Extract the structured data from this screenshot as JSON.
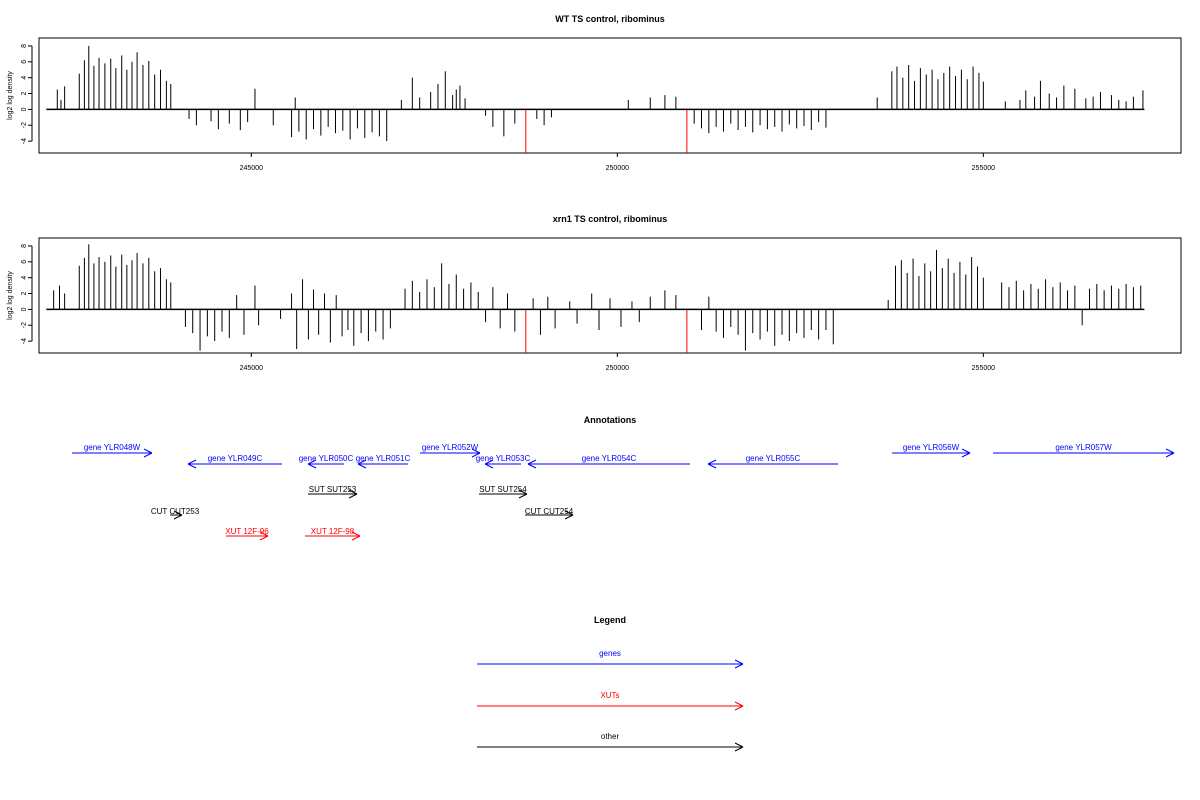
{
  "colors": {
    "black": "#000000",
    "red": "#ff0000",
    "blue": "#0000ff"
  },
  "chart_data": [
    {
      "type": "bar",
      "title": "WT TS control, ribominus",
      "ylabel": "log2 log density",
      "xlim": [
        242100,
        257700
      ],
      "ylim": [
        -5.5,
        9
      ],
      "yticks": [
        "8",
        "6",
        "4",
        "2",
        "0",
        "-2",
        "-4"
      ],
      "xticks": [
        "245000",
        "250000",
        "255000"
      ],
      "baseline_x": [
        242200,
        257200
      ],
      "grid": false,
      "bars": [
        {
          "x": 242350,
          "y": 2.5
        },
        {
          "x": 242400,
          "y": 1.2
        },
        {
          "x": 242450,
          "y": 2.9
        },
        {
          "x": 242650,
          "y": 4.5
        },
        {
          "x": 242720,
          "y": 6.2
        },
        {
          "x": 242780,
          "y": 8.0
        },
        {
          "x": 242850,
          "y": 5.5
        },
        {
          "x": 242920,
          "y": 6.5
        },
        {
          "x": 243000,
          "y": 5.8
        },
        {
          "x": 243080,
          "y": 6.4
        },
        {
          "x": 243150,
          "y": 5.2
        },
        {
          "x": 243230,
          "y": 6.8
        },
        {
          "x": 243300,
          "y": 5.0
        },
        {
          "x": 243370,
          "y": 6.0
        },
        {
          "x": 243440,
          "y": 7.2
        },
        {
          "x": 243520,
          "y": 5.6
        },
        {
          "x": 243600,
          "y": 6.1
        },
        {
          "x": 243680,
          "y": 4.4
        },
        {
          "x": 243760,
          "y": 5.0
        },
        {
          "x": 243840,
          "y": 3.6
        },
        {
          "x": 243900,
          "y": 3.2
        },
        {
          "x": 244150,
          "y": -1.2
        },
        {
          "x": 244250,
          "y": -2.0
        },
        {
          "x": 244450,
          "y": -1.5
        },
        {
          "x": 244550,
          "y": -2.5
        },
        {
          "x": 244700,
          "y": -1.8
        },
        {
          "x": 244850,
          "y": -2.6
        },
        {
          "x": 244950,
          "y": -1.6
        },
        {
          "x": 245050,
          "y": 2.6
        },
        {
          "x": 245300,
          "y": -2.0
        },
        {
          "x": 245550,
          "y": -3.5
        },
        {
          "x": 245600,
          "y": 1.5
        },
        {
          "x": 245650,
          "y": -2.8
        },
        {
          "x": 245750,
          "y": -3.8
        },
        {
          "x": 245850,
          "y": -2.5
        },
        {
          "x": 245950,
          "y": -3.3
        },
        {
          "x": 246050,
          "y": -2.2
        },
        {
          "x": 246150,
          "y": -3.0
        },
        {
          "x": 246250,
          "y": -2.7
        },
        {
          "x": 246350,
          "y": -3.8
        },
        {
          "x": 246450,
          "y": -2.4
        },
        {
          "x": 246550,
          "y": -3.6
        },
        {
          "x": 246650,
          "y": -2.9
        },
        {
          "x": 246750,
          "y": -3.4
        },
        {
          "x": 246850,
          "y": -4.0
        },
        {
          "x": 247050,
          "y": 1.2
        },
        {
          "x": 247200,
          "y": 4.0
        },
        {
          "x": 247300,
          "y": 1.5
        },
        {
          "x": 247450,
          "y": 2.2
        },
        {
          "x": 247550,
          "y": 3.2
        },
        {
          "x": 247650,
          "y": 4.8
        },
        {
          "x": 247750,
          "y": 1.8
        },
        {
          "x": 247800,
          "y": 2.5
        },
        {
          "x": 247850,
          "y": 3.0
        },
        {
          "x": 247920,
          "y": 1.4
        },
        {
          "x": 248200,
          "y": -0.8
        },
        {
          "x": 248300,
          "y": -2.2
        },
        {
          "x": 248450,
          "y": -3.4
        },
        {
          "x": 248600,
          "y": -1.8
        },
        {
          "x": 248750,
          "y": -5.5,
          "color": "red"
        },
        {
          "x": 248900,
          "y": -1.2
        },
        {
          "x": 249000,
          "y": -2.0
        },
        {
          "x": 249100,
          "y": -1.0
        },
        {
          "x": 250150,
          "y": 1.2
        },
        {
          "x": 250450,
          "y": 1.5
        },
        {
          "x": 250650,
          "y": 1.8
        },
        {
          "x": 250800,
          "y": 1.6
        },
        {
          "x": 250950,
          "y": -5.5,
          "color": "red"
        },
        {
          "x": 251050,
          "y": -1.8
        },
        {
          "x": 251150,
          "y": -2.4
        },
        {
          "x": 251250,
          "y": -3.0
        },
        {
          "x": 251350,
          "y": -2.2
        },
        {
          "x": 251450,
          "y": -2.8
        },
        {
          "x": 251550,
          "y": -1.8
        },
        {
          "x": 251650,
          "y": -2.6
        },
        {
          "x": 251750,
          "y": -2.2
        },
        {
          "x": 251850,
          "y": -2.9
        },
        {
          "x": 251950,
          "y": -2.0
        },
        {
          "x": 252050,
          "y": -2.5
        },
        {
          "x": 252150,
          "y": -2.2
        },
        {
          "x": 252250,
          "y": -2.8
        },
        {
          "x": 252350,
          "y": -1.9
        },
        {
          "x": 252450,
          "y": -2.4
        },
        {
          "x": 252550,
          "y": -2.1
        },
        {
          "x": 252650,
          "y": -2.6
        },
        {
          "x": 252750,
          "y": -1.6
        },
        {
          "x": 252850,
          "y": -2.3
        },
        {
          "x": 253550,
          "y": 1.5
        },
        {
          "x": 253750,
          "y": 4.8
        },
        {
          "x": 253820,
          "y": 5.4
        },
        {
          "x": 253900,
          "y": 4.0
        },
        {
          "x": 253980,
          "y": 5.6
        },
        {
          "x": 254060,
          "y": 3.6
        },
        {
          "x": 254140,
          "y": 5.2
        },
        {
          "x": 254220,
          "y": 4.4
        },
        {
          "x": 254300,
          "y": 5.0
        },
        {
          "x": 254380,
          "y": 3.8
        },
        {
          "x": 254460,
          "y": 4.6
        },
        {
          "x": 254540,
          "y": 5.4
        },
        {
          "x": 254620,
          "y": 4.2
        },
        {
          "x": 254700,
          "y": 5.0
        },
        {
          "x": 254780,
          "y": 3.8
        },
        {
          "x": 254860,
          "y": 5.4
        },
        {
          "x": 254940,
          "y": 4.6
        },
        {
          "x": 255000,
          "y": 3.5
        },
        {
          "x": 255300,
          "y": 1.0
        },
        {
          "x": 255500,
          "y": 1.2
        },
        {
          "x": 255580,
          "y": 2.4
        },
        {
          "x": 255700,
          "y": 1.6
        },
        {
          "x": 255780,
          "y": 3.6
        },
        {
          "x": 255900,
          "y": 2.0
        },
        {
          "x": 256000,
          "y": 1.5
        },
        {
          "x": 256100,
          "y": 3.0
        },
        {
          "x": 256250,
          "y": 2.6
        },
        {
          "x": 256400,
          "y": 1.4
        },
        {
          "x": 256500,
          "y": 1.6
        },
        {
          "x": 256600,
          "y": 2.2
        },
        {
          "x": 256750,
          "y": 1.8
        },
        {
          "x": 256850,
          "y": 1.2
        },
        {
          "x": 256950,
          "y": 1.0
        },
        {
          "x": 257050,
          "y": 1.6
        },
        {
          "x": 257180,
          "y": 2.4
        }
      ]
    },
    {
      "type": "bar",
      "title": "xrn1 TS control, ribominus",
      "ylabel": "log2 log density",
      "xlim": [
        242100,
        257700
      ],
      "ylim": [
        -5.5,
        9
      ],
      "yticks": [
        "8",
        "6",
        "4",
        "2",
        "0",
        "-2",
        "-4"
      ],
      "xticks": [
        "245000",
        "250000",
        "255000"
      ],
      "baseline_x": [
        242200,
        257200
      ],
      "grid": false,
      "bars": [
        {
          "x": 242300,
          "y": 2.4
        },
        {
          "x": 242380,
          "y": 3.0
        },
        {
          "x": 242450,
          "y": 2.0
        },
        {
          "x": 242650,
          "y": 5.5
        },
        {
          "x": 242720,
          "y": 6.5
        },
        {
          "x": 242780,
          "y": 8.2
        },
        {
          "x": 242850,
          "y": 5.8
        },
        {
          "x": 242920,
          "y": 6.6
        },
        {
          "x": 243000,
          "y": 6.0
        },
        {
          "x": 243080,
          "y": 6.8
        },
        {
          "x": 243150,
          "y": 5.4
        },
        {
          "x": 243230,
          "y": 6.9
        },
        {
          "x": 243300,
          "y": 5.6
        },
        {
          "x": 243370,
          "y": 6.2
        },
        {
          "x": 243440,
          "y": 7.1
        },
        {
          "x": 243520,
          "y": 5.8
        },
        {
          "x": 243600,
          "y": 6.5
        },
        {
          "x": 243680,
          "y": 4.8
        },
        {
          "x": 243760,
          "y": 5.2
        },
        {
          "x": 243840,
          "y": 3.8
        },
        {
          "x": 243900,
          "y": 3.4
        },
        {
          "x": 244100,
          "y": -2.2
        },
        {
          "x": 244200,
          "y": -3.0
        },
        {
          "x": 244300,
          "y": -5.2
        },
        {
          "x": 244400,
          "y": -3.4
        },
        {
          "x": 244500,
          "y": -4.0
        },
        {
          "x": 244600,
          "y": -2.8
        },
        {
          "x": 244700,
          "y": -3.6
        },
        {
          "x": 244800,
          "y": 1.8
        },
        {
          "x": 244900,
          "y": -3.2
        },
        {
          "x": 245050,
          "y": 3.0
        },
        {
          "x": 245100,
          "y": -2.0
        },
        {
          "x": 245400,
          "y": -1.2
        },
        {
          "x": 245550,
          "y": 2.0
        },
        {
          "x": 245620,
          "y": -5.0
        },
        {
          "x": 245700,
          "y": 3.8
        },
        {
          "x": 245780,
          "y": -3.8
        },
        {
          "x": 245850,
          "y": 2.5
        },
        {
          "x": 245920,
          "y": -3.2
        },
        {
          "x": 246000,
          "y": 2.0
        },
        {
          "x": 246080,
          "y": -4.2
        },
        {
          "x": 246160,
          "y": 1.8
        },
        {
          "x": 246240,
          "y": -3.4
        },
        {
          "x": 246320,
          "y": -2.6
        },
        {
          "x": 246400,
          "y": -4.6
        },
        {
          "x": 246500,
          "y": -3.0
        },
        {
          "x": 246600,
          "y": -4.0
        },
        {
          "x": 246700,
          "y": -2.8
        },
        {
          "x": 246800,
          "y": -3.8
        },
        {
          "x": 246900,
          "y": -2.4
        },
        {
          "x": 247100,
          "y": 2.6
        },
        {
          "x": 247200,
          "y": 3.6
        },
        {
          "x": 247300,
          "y": 2.2
        },
        {
          "x": 247400,
          "y": 3.8
        },
        {
          "x": 247500,
          "y": 2.8
        },
        {
          "x": 247600,
          "y": 5.8
        },
        {
          "x": 247700,
          "y": 3.2
        },
        {
          "x": 247800,
          "y": 4.4
        },
        {
          "x": 247900,
          "y": 2.6
        },
        {
          "x": 248000,
          "y": 3.4
        },
        {
          "x": 248100,
          "y": 2.2
        },
        {
          "x": 248200,
          "y": -1.6
        },
        {
          "x": 248300,
          "y": 2.8
        },
        {
          "x": 248400,
          "y": -2.4
        },
        {
          "x": 248500,
          "y": 2.0
        },
        {
          "x": 248600,
          "y": -2.8
        },
        {
          "x": 248750,
          "y": -5.5,
          "color": "red"
        },
        {
          "x": 248850,
          "y": 1.4
        },
        {
          "x": 248950,
          "y": -3.2
        },
        {
          "x": 249050,
          "y": 1.6
        },
        {
          "x": 249150,
          "y": -2.4
        },
        {
          "x": 249350,
          "y": 1.0
        },
        {
          "x": 249450,
          "y": -1.8
        },
        {
          "x": 249650,
          "y": 2.0
        },
        {
          "x": 249750,
          "y": -2.6
        },
        {
          "x": 249900,
          "y": 1.4
        },
        {
          "x": 250050,
          "y": -2.2
        },
        {
          "x": 250200,
          "y": 1.0
        },
        {
          "x": 250300,
          "y": -1.6
        },
        {
          "x": 250450,
          "y": 1.6
        },
        {
          "x": 250650,
          "y": 2.4
        },
        {
          "x": 250800,
          "y": 1.8
        },
        {
          "x": 250950,
          "y": -5.5,
          "color": "red"
        },
        {
          "x": 251150,
          "y": -2.6
        },
        {
          "x": 251250,
          "y": 1.6
        },
        {
          "x": 251350,
          "y": -2.8
        },
        {
          "x": 251450,
          "y": -3.6
        },
        {
          "x": 251550,
          "y": -2.2
        },
        {
          "x": 251650,
          "y": -3.2
        },
        {
          "x": 251750,
          "y": -5.2
        },
        {
          "x": 251850,
          "y": -3.0
        },
        {
          "x": 251950,
          "y": -3.8
        },
        {
          "x": 252050,
          "y": -2.8
        },
        {
          "x": 252150,
          "y": -4.6
        },
        {
          "x": 252250,
          "y": -3.2
        },
        {
          "x": 252350,
          "y": -4.0
        },
        {
          "x": 252450,
          "y": -3.0
        },
        {
          "x": 252550,
          "y": -3.6
        },
        {
          "x": 252650,
          "y": -2.6
        },
        {
          "x": 252750,
          "y": -3.8
        },
        {
          "x": 252850,
          "y": -2.6
        },
        {
          "x": 252950,
          "y": -4.4
        },
        {
          "x": 253700,
          "y": 1.2
        },
        {
          "x": 253800,
          "y": 5.5
        },
        {
          "x": 253880,
          "y": 6.2
        },
        {
          "x": 253960,
          "y": 4.6
        },
        {
          "x": 254040,
          "y": 6.4
        },
        {
          "x": 254120,
          "y": 4.2
        },
        {
          "x": 254200,
          "y": 5.8
        },
        {
          "x": 254280,
          "y": 4.8
        },
        {
          "x": 254360,
          "y": 7.5
        },
        {
          "x": 254440,
          "y": 5.2
        },
        {
          "x": 254520,
          "y": 6.4
        },
        {
          "x": 254600,
          "y": 4.6
        },
        {
          "x": 254680,
          "y": 6.0
        },
        {
          "x": 254760,
          "y": 4.4
        },
        {
          "x": 254840,
          "y": 6.6
        },
        {
          "x": 254920,
          "y": 5.4
        },
        {
          "x": 255000,
          "y": 4.0
        },
        {
          "x": 255250,
          "y": 3.4
        },
        {
          "x": 255350,
          "y": 2.8
        },
        {
          "x": 255450,
          "y": 3.6
        },
        {
          "x": 255550,
          "y": 2.4
        },
        {
          "x": 255650,
          "y": 3.2
        },
        {
          "x": 255750,
          "y": 2.6
        },
        {
          "x": 255850,
          "y": 3.8
        },
        {
          "x": 255950,
          "y": 2.8
        },
        {
          "x": 256050,
          "y": 3.4
        },
        {
          "x": 256150,
          "y": 2.4
        },
        {
          "x": 256250,
          "y": 3.0
        },
        {
          "x": 256350,
          "y": -2.0
        },
        {
          "x": 256450,
          "y": 2.6
        },
        {
          "x": 256550,
          "y": 3.2
        },
        {
          "x": 256650,
          "y": 2.4
        },
        {
          "x": 256750,
          "y": 3.0
        },
        {
          "x": 256850,
          "y": 2.6
        },
        {
          "x": 256950,
          "y": 3.2
        },
        {
          "x": 257050,
          "y": 2.8
        },
        {
          "x": 257150,
          "y": 3.0
        }
      ]
    }
  ],
  "annotations": {
    "title": "Annotations",
    "items": [
      {
        "label": "gene YLR048W",
        "color": "blue",
        "dir": "right"
      },
      {
        "label": "gene YLR049C",
        "color": "blue",
        "dir": "left"
      },
      {
        "label": "gene YLR050C",
        "color": "blue",
        "dir": "left"
      },
      {
        "label": "gene YLR051C",
        "color": "blue",
        "dir": "left"
      },
      {
        "label": "gene YLR052W",
        "color": "blue",
        "dir": "right"
      },
      {
        "label": "gene YLR053C",
        "color": "blue",
        "dir": "left"
      },
      {
        "label": "gene YLR054C",
        "color": "blue",
        "dir": "left"
      },
      {
        "label": "gene YLR055C",
        "color": "blue",
        "dir": "left"
      },
      {
        "label": "gene YLR056W",
        "color": "blue",
        "dir": "right"
      },
      {
        "label": "gene YLR057W",
        "color": "blue",
        "dir": "right"
      },
      {
        "label": "SUT SUT253",
        "color": "black",
        "dir": "right"
      },
      {
        "label": "SUT SUT254",
        "color": "black",
        "dir": "right"
      },
      {
        "label": "CUT CUT253",
        "color": "black",
        "dir": "right"
      },
      {
        "label": "CUT CUT254",
        "color": "black",
        "dir": "right"
      },
      {
        "label": "XUT 12F-96",
        "color": "red",
        "dir": "right"
      },
      {
        "label": "XUT 12F-98",
        "color": "red",
        "dir": "right"
      }
    ]
  },
  "legend": {
    "title": "Legend",
    "items": [
      {
        "label": "genes",
        "color": "blue"
      },
      {
        "label": "XUTs",
        "color": "red"
      },
      {
        "label": "other",
        "color": "black"
      }
    ]
  }
}
